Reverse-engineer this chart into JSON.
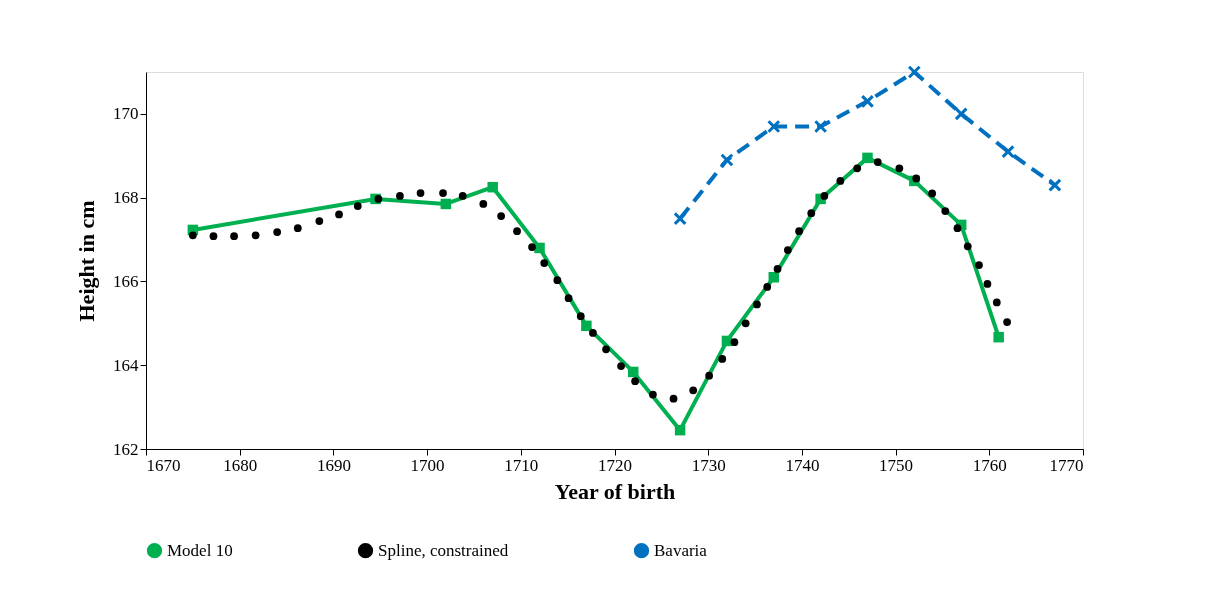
{
  "chart_data": {
    "type": "line",
    "xlabel": "Year of birth",
    "ylabel": "Height in cm",
    "xlim": [
      1670,
      1770
    ],
    "xticks": [
      {
        "value": 1670,
        "label": "1670"
      },
      {
        "value": 1680,
        "label": "1680"
      },
      {
        "value": 1690,
        "label": "1690"
      },
      {
        "value": 1700,
        "label": "1700"
      },
      {
        "value": 1710,
        "label": "1710"
      },
      {
        "value": 1720,
        "label": "1720"
      },
      {
        "value": 1730,
        "label": "1730"
      },
      {
        "value": 1740,
        "label": "1740"
      },
      {
        "value": 1750,
        "label": "1750"
      },
      {
        "value": 1760,
        "label": "1760"
      },
      {
        "value": 1770,
        "label": "1770"
      }
    ],
    "ylim": [
      162,
      171
    ],
    "yticks": [
      162,
      164,
      166,
      168,
      170
    ],
    "grid": false,
    "legend": "bottom",
    "series": [
      {
        "name": "Model 10",
        "color": "#00b050",
        "marker": "square",
        "line_style": "solid",
        "x": [
          1675,
          1694.5,
          1702,
          1707,
          1712,
          1717,
          1722,
          1727,
          1732,
          1737,
          1742,
          1747,
          1752,
          1757,
          1761
        ],
        "values": [
          167.23,
          167.97,
          167.85,
          168.25,
          166.8,
          164.94,
          163.84,
          162.45,
          164.58,
          166.1,
          167.97,
          168.95,
          168.4,
          167.35,
          164.67
        ]
      },
      {
        "name": "Spline, constrained",
        "type": "scatter",
        "color": "#000000",
        "marker": "circle",
        "x": [
          1675,
          1677.2,
          1679.4,
          1681.7,
          1684,
          1686.2,
          1688.5,
          1690.6,
          1692.6,
          1694.8,
          1697.1,
          1699.3,
          1701.7,
          1703.8,
          1706,
          1707.9,
          1709.6,
          1711.2,
          1712.5,
          1713.9,
          1715.1,
          1716.4,
          1717.7,
          1719.1,
          1720.7,
          1722.2,
          1724.1,
          1726.3,
          1728.4,
          1730.1,
          1731.5,
          1732.8,
          1734,
          1735.2,
          1736.3,
          1737.4,
          1738.5,
          1739.7,
          1741,
          1742.4,
          1744.1,
          1745.9,
          1748.1,
          1750.4,
          1752.2,
          1753.9,
          1755.3,
          1756.6,
          1757.7,
          1758.9,
          1759.8,
          1760.8,
          1761.9
        ],
        "values": [
          167.1,
          167.08,
          167.08,
          167.1,
          167.18,
          167.27,
          167.44,
          167.6,
          167.8,
          167.97,
          168.04,
          168.11,
          168.11,
          168.04,
          167.85,
          167.56,
          167.2,
          166.82,
          166.44,
          166.03,
          165.6,
          165.17,
          164.77,
          164.38,
          163.98,
          163.62,
          163.3,
          163.2,
          163.4,
          163.75,
          164.15,
          164.55,
          165.0,
          165.45,
          165.87,
          166.3,
          166.75,
          167.2,
          167.63,
          168.04,
          168.4,
          168.7,
          168.85,
          168.7,
          168.46,
          168.1,
          167.68,
          167.27,
          166.84,
          166.39,
          165.94,
          165.5,
          165.03
        ]
      },
      {
        "name": "Bavaria",
        "color": "#0070c0",
        "marker": "cross",
        "line_style": "dashed",
        "x": [
          1727,
          1732,
          1737,
          1742,
          1747,
          1752,
          1757,
          1762,
          1767
        ],
        "values": [
          167.5,
          168.9,
          169.7,
          169.7,
          170.3,
          171.0,
          170.0,
          169.1,
          168.3
        ]
      }
    ]
  }
}
